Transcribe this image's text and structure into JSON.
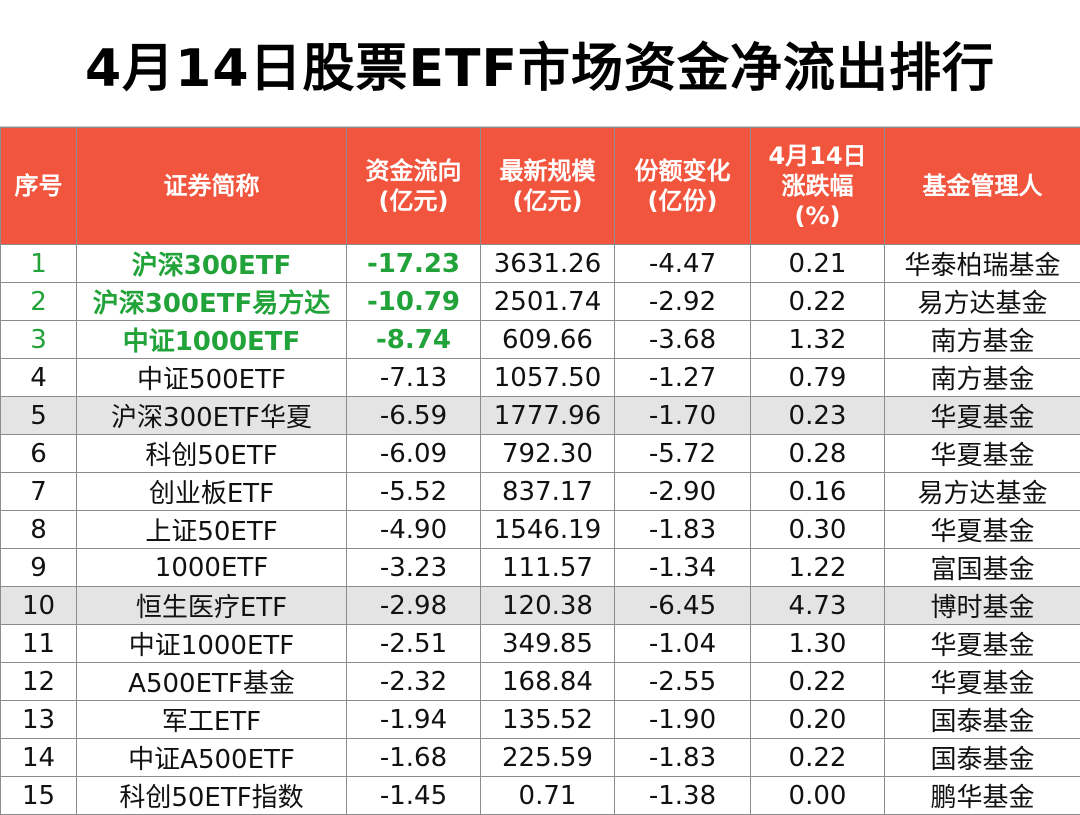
{
  "title": "4月14日股票ETF市场资金净流出排行",
  "headers": {
    "rank": "序号",
    "name": "证券简称",
    "flow": [
      "资金流向",
      "(亿元)"
    ],
    "scale": [
      "最新规模",
      "(亿元)"
    ],
    "shares": [
      "份额变化",
      "(亿份)"
    ],
    "change": [
      "4月14日",
      "涨跌幅",
      "(%)"
    ],
    "manager": "基金管理人"
  },
  "colors": {
    "header_bg": "#f2553d",
    "highlight_text": "#21a33a",
    "shaded_row": "#e4e4e4"
  },
  "rows": [
    {
      "rank": "1",
      "name": "沪深300ETF",
      "flow": "-17.23",
      "scale": "3631.26",
      "shares": "-4.47",
      "change": "0.21",
      "manager": "华泰柏瑞基金",
      "highlight": true,
      "shaded": false
    },
    {
      "rank": "2",
      "name": "沪深300ETF易方达",
      "flow": "-10.79",
      "scale": "2501.74",
      "shares": "-2.92",
      "change": "0.22",
      "manager": "易方达基金",
      "highlight": true,
      "shaded": false
    },
    {
      "rank": "3",
      "name": "中证1000ETF",
      "flow": "-8.74",
      "scale": "609.66",
      "shares": "-3.68",
      "change": "1.32",
      "manager": "南方基金",
      "highlight": true,
      "shaded": false
    },
    {
      "rank": "4",
      "name": "中证500ETF",
      "flow": "-7.13",
      "scale": "1057.50",
      "shares": "-1.27",
      "change": "0.79",
      "manager": "南方基金",
      "highlight": false,
      "shaded": false
    },
    {
      "rank": "5",
      "name": "沪深300ETF华夏",
      "flow": "-6.59",
      "scale": "1777.96",
      "shares": "-1.70",
      "change": "0.23",
      "manager": "华夏基金",
      "highlight": false,
      "shaded": true
    },
    {
      "rank": "6",
      "name": "科创50ETF",
      "flow": "-6.09",
      "scale": "792.30",
      "shares": "-5.72",
      "change": "0.28",
      "manager": "华夏基金",
      "highlight": false,
      "shaded": false
    },
    {
      "rank": "7",
      "name": "创业板ETF",
      "flow": "-5.52",
      "scale": "837.17",
      "shares": "-2.90",
      "change": "0.16",
      "manager": "易方达基金",
      "highlight": false,
      "shaded": false
    },
    {
      "rank": "8",
      "name": "上证50ETF",
      "flow": "-4.90",
      "scale": "1546.19",
      "shares": "-1.83",
      "change": "0.30",
      "manager": "华夏基金",
      "highlight": false,
      "shaded": false
    },
    {
      "rank": "9",
      "name": "1000ETF",
      "flow": "-3.23",
      "scale": "111.57",
      "shares": "-1.34",
      "change": "1.22",
      "manager": "富国基金",
      "highlight": false,
      "shaded": false
    },
    {
      "rank": "10",
      "name": "恒生医疗ETF",
      "flow": "-2.98",
      "scale": "120.38",
      "shares": "-6.45",
      "change": "4.73",
      "manager": "博时基金",
      "highlight": false,
      "shaded": true
    },
    {
      "rank": "11",
      "name": "中证1000ETF",
      "flow": "-2.51",
      "scale": "349.85",
      "shares": "-1.04",
      "change": "1.30",
      "manager": "华夏基金",
      "highlight": false,
      "shaded": false
    },
    {
      "rank": "12",
      "name": "A500ETF基金",
      "flow": "-2.32",
      "scale": "168.84",
      "shares": "-2.55",
      "change": "0.22",
      "manager": "华夏基金",
      "highlight": false,
      "shaded": false
    },
    {
      "rank": "13",
      "name": "军工ETF",
      "flow": "-1.94",
      "scale": "135.52",
      "shares": "-1.90",
      "change": "0.20",
      "manager": "国泰基金",
      "highlight": false,
      "shaded": false
    },
    {
      "rank": "14",
      "name": "中证A500ETF",
      "flow": "-1.68",
      "scale": "225.59",
      "shares": "-1.83",
      "change": "0.22",
      "manager": "国泰基金",
      "highlight": false,
      "shaded": false
    },
    {
      "rank": "15",
      "name": "科创50ETF指数",
      "flow": "-1.45",
      "scale": "0.71",
      "shares": "-1.38",
      "change": "0.00",
      "manager": "鹏华基金",
      "highlight": false,
      "shaded": false
    }
  ]
}
